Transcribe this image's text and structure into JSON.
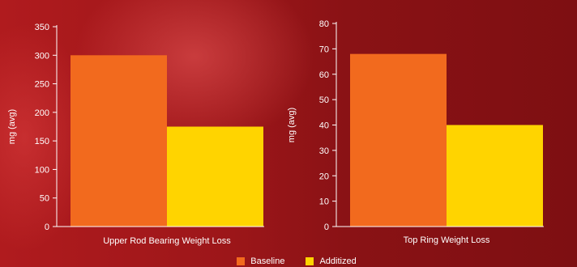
{
  "chart_data": [
    {
      "type": "bar",
      "categories": [
        "Upper Rod Bearing Weight Loss"
      ],
      "xlabel": "Upper Rod Bearing Weight Loss",
      "ylabel": "mg (avg)",
      "ylim": [
        0,
        350
      ],
      "yticks": [
        0,
        50,
        100,
        150,
        200,
        250,
        300,
        350
      ],
      "series": [
        {
          "name": "Baseline",
          "values": [
            300
          ]
        },
        {
          "name": "Additized",
          "values": [
            175
          ]
        }
      ]
    },
    {
      "type": "bar",
      "categories": [
        "Top Ring Weight Loss"
      ],
      "xlabel": "Top Ring Weight Loss",
      "ylabel": "mg (avg)",
      "ylim": [
        0,
        80
      ],
      "yticks": [
        0,
        10,
        20,
        30,
        40,
        50,
        60,
        70,
        80
      ],
      "series": [
        {
          "name": "Baseline",
          "values": [
            68
          ]
        },
        {
          "name": "Additized",
          "values": [
            40
          ]
        }
      ]
    }
  ],
  "legend": {
    "placement": "bottom-center",
    "items": [
      {
        "label": "Baseline",
        "color": "#f26a1e"
      },
      {
        "label": "Additized",
        "color": "#ffd400"
      }
    ]
  },
  "colors": {
    "baseline": "#f26a1e",
    "additized": "#ffd400",
    "axis": "#ffffff"
  }
}
